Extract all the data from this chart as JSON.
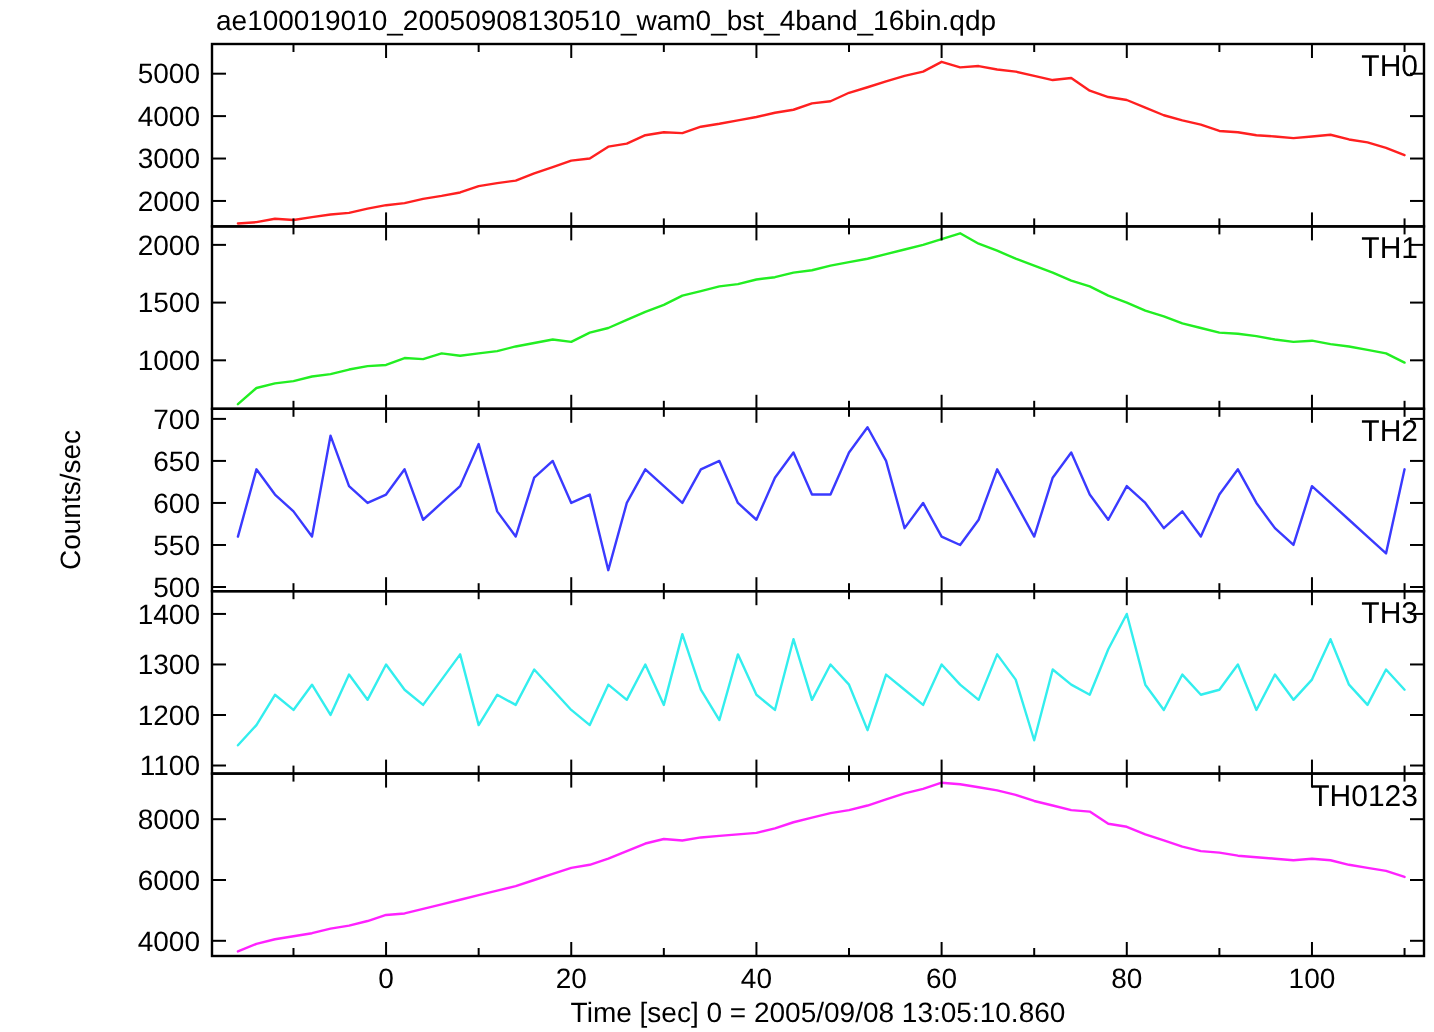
{
  "chart_data": [
    {
      "type": "line",
      "title": "ae100019010_20050908130510_wam0_bst_4band_16bin.qdp",
      "x": [
        -16,
        -14,
        -12,
        -10,
        -8,
        -6,
        -4,
        -2,
        0,
        2,
        4,
        6,
        8,
        10,
        12,
        14,
        16,
        18,
        20,
        22,
        24,
        26,
        28,
        30,
        32,
        34,
        36,
        38,
        40,
        42,
        44,
        46,
        48,
        50,
        52,
        54,
        56,
        58,
        60,
        62,
        64,
        66,
        68,
        70,
        72,
        74,
        76,
        78,
        80,
        82,
        84,
        86,
        88,
        90,
        92,
        94,
        96,
        98,
        100,
        102,
        104,
        106,
        108,
        110
      ],
      "xlim": [
        -18.8,
        112.1
      ],
      "xticks": [
        {
          "value": -10,
          "label": null
        },
        0,
        {
          "value": 10,
          "label": null
        },
        20,
        {
          "value": 30,
          "label": null
        },
        40,
        {
          "value": 50,
          "label": null
        },
        60,
        {
          "value": 70,
          "label": null
        },
        80,
        {
          "value": 90,
          "label": null
        },
        100,
        {
          "value": 110,
          "label": null
        }
      ],
      "ylim": [
        1400,
        5700
      ],
      "yticks": [
        2000,
        3000,
        4000,
        5000
      ],
      "tick_labels": "y",
      "series": [
        {
          "name": "TH0",
          "color": "#ff2020",
          "values": [
            1470,
            1500,
            1580,
            1550,
            1620,
            1680,
            1720,
            1820,
            1900,
            1950,
            2050,
            2120,
            2200,
            2350,
            2420,
            2480,
            2650,
            2800,
            2950,
            3000,
            3280,
            3350,
            3550,
            3620,
            3600,
            3750,
            3820,
            3900,
            3980,
            4080,
            4150,
            4300,
            4350,
            4550,
            4680,
            4820,
            4950,
            5050,
            5280,
            5150,
            5180,
            5100,
            5050,
            4950,
            4850,
            4900,
            4600,
            4450,
            4380,
            4200,
            4020,
            3900,
            3800,
            3650,
            3620,
            3550,
            3520,
            3480,
            3520,
            3560,
            3450,
            3380,
            3250,
            3080
          ]
        }
      ]
    },
    {
      "type": "line",
      "x": [
        -16,
        -14,
        -12,
        -10,
        -8,
        -6,
        -4,
        -2,
        0,
        2,
        4,
        6,
        8,
        10,
        12,
        14,
        16,
        18,
        20,
        22,
        24,
        26,
        28,
        30,
        32,
        34,
        36,
        38,
        40,
        42,
        44,
        46,
        48,
        50,
        52,
        54,
        56,
        58,
        60,
        62,
        64,
        66,
        68,
        70,
        72,
        74,
        76,
        78,
        80,
        82,
        84,
        86,
        88,
        90,
        92,
        94,
        96,
        98,
        100,
        102,
        104,
        106,
        108,
        110
      ],
      "xlim": [
        -18.8,
        112.1
      ],
      "xticks": [
        {
          "value": -10,
          "label": null
        },
        0,
        {
          "value": 10,
          "label": null
        },
        20,
        {
          "value": 30,
          "label": null
        },
        40,
        {
          "value": 50,
          "label": null
        },
        60,
        {
          "value": 70,
          "label": null
        },
        80,
        {
          "value": 90,
          "label": null
        },
        100,
        {
          "value": 110,
          "label": null
        }
      ],
      "ylim": [
        580,
        2160
      ],
      "yticks": [
        1000,
        1500,
        2000
      ],
      "tick_labels": "y",
      "series": [
        {
          "name": "TH1",
          "color": "#22ee22",
          "values": [
            620,
            760,
            800,
            820,
            860,
            880,
            920,
            950,
            960,
            1020,
            1010,
            1060,
            1040,
            1060,
            1080,
            1120,
            1150,
            1180,
            1160,
            1240,
            1280,
            1350,
            1420,
            1480,
            1560,
            1600,
            1640,
            1660,
            1700,
            1720,
            1760,
            1780,
            1820,
            1850,
            1880,
            1920,
            1960,
            2000,
            2050,
            2100,
            2010,
            1950,
            1880,
            1820,
            1760,
            1690,
            1640,
            1560,
            1500,
            1430,
            1380,
            1320,
            1280,
            1240,
            1230,
            1210,
            1180,
            1160,
            1170,
            1140,
            1120,
            1090,
            1060,
            980
          ]
        }
      ]
    },
    {
      "type": "line",
      "ylabel": "Counts/sec",
      "x": [
        -16,
        -14,
        -12,
        -10,
        -8,
        -6,
        -4,
        -2,
        0,
        2,
        4,
        6,
        8,
        10,
        12,
        14,
        16,
        18,
        20,
        22,
        24,
        26,
        28,
        30,
        32,
        34,
        36,
        38,
        40,
        42,
        44,
        46,
        48,
        50,
        52,
        54,
        56,
        58,
        60,
        62,
        64,
        66,
        68,
        70,
        72,
        74,
        76,
        78,
        80,
        82,
        84,
        86,
        88,
        90,
        92,
        94,
        96,
        98,
        100,
        102,
        104,
        106,
        108,
        110
      ],
      "xlim": [
        -18.8,
        112.1
      ],
      "xticks": [
        {
          "value": -10,
          "label": null
        },
        0,
        {
          "value": 10,
          "label": null
        },
        20,
        {
          "value": 30,
          "label": null
        },
        40,
        {
          "value": 50,
          "label": null
        },
        60,
        {
          "value": 70,
          "label": null
        },
        80,
        {
          "value": 90,
          "label": null
        },
        100,
        {
          "value": 110,
          "label": null
        }
      ],
      "ylim": [
        495,
        712
      ],
      "yticks": [
        500,
        550,
        600,
        650,
        700
      ],
      "tick_labels": "y",
      "series": [
        {
          "name": "TH2",
          "color": "#3a3aff",
          "values": [
            560,
            640,
            610,
            590,
            560,
            680,
            620,
            600,
            610,
            640,
            580,
            600,
            620,
            670,
            590,
            560,
            630,
            650,
            600,
            610,
            520,
            600,
            640,
            620,
            600,
            640,
            650,
            600,
            580,
            630,
            660,
            610,
            610,
            660,
            690,
            650,
            570,
            600,
            560,
            550,
            580,
            640,
            600,
            560,
            630,
            660,
            610,
            580,
            620,
            600,
            570,
            590,
            560,
            610,
            640,
            600,
            570,
            550,
            620,
            600,
            580,
            560,
            540,
            640
          ]
        }
      ]
    },
    {
      "type": "line",
      "x": [
        -16,
        -14,
        -12,
        -10,
        -8,
        -6,
        -4,
        -2,
        0,
        2,
        4,
        6,
        8,
        10,
        12,
        14,
        16,
        18,
        20,
        22,
        24,
        26,
        28,
        30,
        32,
        34,
        36,
        38,
        40,
        42,
        44,
        46,
        48,
        50,
        52,
        54,
        56,
        58,
        60,
        62,
        64,
        66,
        68,
        70,
        72,
        74,
        76,
        78,
        80,
        82,
        84,
        86,
        88,
        90,
        92,
        94,
        96,
        98,
        100,
        102,
        104,
        106,
        108,
        110
      ],
      "xlim": [
        -18.8,
        112.1
      ],
      "xticks": [
        {
          "value": -10,
          "label": null
        },
        0,
        {
          "value": 10,
          "label": null
        },
        20,
        {
          "value": 30,
          "label": null
        },
        40,
        {
          "value": 50,
          "label": null
        },
        60,
        {
          "value": 70,
          "label": null
        },
        80,
        {
          "value": 90,
          "label": null
        },
        100,
        {
          "value": 110,
          "label": null
        }
      ],
      "ylim": [
        1084,
        1445
      ],
      "yticks": [
        1100,
        1200,
        1300,
        1400
      ],
      "tick_labels": "y",
      "series": [
        {
          "name": "TH3",
          "color": "#33eeee",
          "values": [
            1140,
            1180,
            1240,
            1210,
            1260,
            1200,
            1280,
            1230,
            1300,
            1250,
            1220,
            1270,
            1320,
            1180,
            1240,
            1220,
            1290,
            1250,
            1210,
            1180,
            1260,
            1230,
            1300,
            1220,
            1360,
            1250,
            1190,
            1320,
            1240,
            1210,
            1350,
            1230,
            1300,
            1260,
            1170,
            1280,
            1250,
            1220,
            1300,
            1260,
            1230,
            1320,
            1270,
            1150,
            1290,
            1260,
            1240,
            1330,
            1400,
            1260,
            1210,
            1280,
            1240,
            1250,
            1300,
            1210,
            1280,
            1230,
            1270,
            1350,
            1260,
            1220,
            1290,
            1250
          ]
        }
      ]
    },
    {
      "type": "line",
      "xlabel": "Time [sec] 0 = 2005/09/08 13:05:10.860",
      "x": [
        -16,
        -14,
        -12,
        -10,
        -8,
        -6,
        -4,
        -2,
        0,
        2,
        4,
        6,
        8,
        10,
        12,
        14,
        16,
        18,
        20,
        22,
        24,
        26,
        28,
        30,
        32,
        34,
        36,
        38,
        40,
        42,
        44,
        46,
        48,
        50,
        52,
        54,
        56,
        58,
        60,
        62,
        64,
        66,
        68,
        70,
        72,
        74,
        76,
        78,
        80,
        82,
        84,
        86,
        88,
        90,
        92,
        94,
        96,
        98,
        100,
        102,
        104,
        106,
        108,
        110
      ],
      "xlim": [
        -18.8,
        112.1
      ],
      "xticks": [
        {
          "value": -10,
          "label": null
        },
        0,
        {
          "value": 10,
          "label": null
        },
        20,
        {
          "value": 30,
          "label": null
        },
        40,
        {
          "value": 50,
          "label": null
        },
        60,
        {
          "value": 70,
          "label": null
        },
        80,
        {
          "value": 90,
          "label": null
        },
        100,
        {
          "value": 110,
          "label": null
        }
      ],
      "ylim": [
        3500,
        9500
      ],
      "yticks": [
        4000,
        6000,
        8000
      ],
      "series": [
        {
          "name": "TH0123",
          "color": "#ff22ff",
          "values": [
            3650,
            3900,
            4050,
            4150,
            4250,
            4400,
            4500,
            4650,
            4850,
            4900,
            5050,
            5200,
            5350,
            5500,
            5650,
            5800,
            6000,
            6200,
            6400,
            6500,
            6700,
            6950,
            7200,
            7350,
            7300,
            7400,
            7450,
            7500,
            7550,
            7700,
            7900,
            8050,
            8200,
            8300,
            8450,
            8650,
            8850,
            9000,
            9200,
            9150,
            9050,
            8950,
            8800,
            8600,
            8450,
            8300,
            8250,
            7850,
            7750,
            7500,
            7300,
            7100,
            6950,
            6900,
            6800,
            6750,
            6700,
            6650,
            6700,
            6650,
            6500,
            6400,
            6300,
            6100
          ]
        }
      ]
    }
  ]
}
